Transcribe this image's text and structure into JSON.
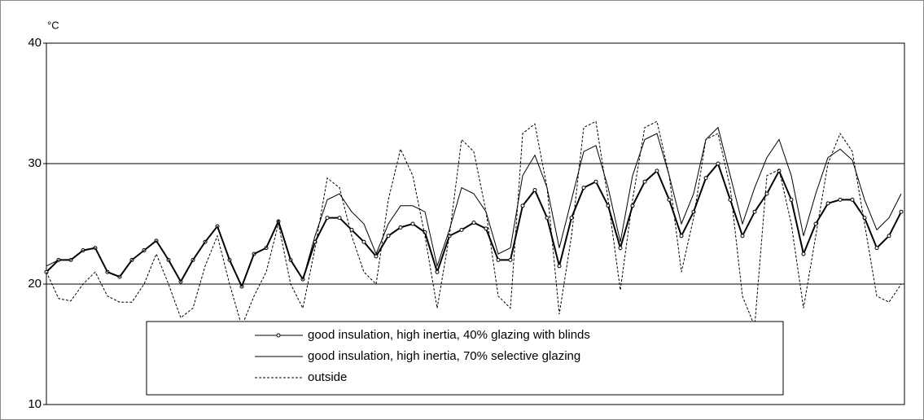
{
  "chart_data": {
    "type": "line",
    "y_label": "°C",
    "ylim": [
      10,
      40
    ],
    "yticks": [
      10,
      20,
      30,
      40
    ],
    "grid": true,
    "legend": "bottom",
    "series": [
      {
        "name": "good insulation, high inertia, 40% glazing with blinds",
        "color": "#000000",
        "style": "markers",
        "values": [
          21,
          22,
          22,
          22.8,
          23,
          21,
          20.6,
          22,
          22.8,
          23.6,
          22,
          20.2,
          22,
          23.5,
          24.8,
          22,
          19.8,
          22.5,
          23,
          25.2,
          22,
          20.4,
          23.5,
          25.5,
          25.5,
          24.5,
          23.5,
          22.3,
          24,
          24.7,
          25,
          24.3,
          21,
          24,
          24.5,
          25.1,
          24.6,
          22,
          22,
          26.5,
          27.8,
          25.5,
          21.5,
          25.5,
          28,
          28.5,
          26.5,
          23,
          26.5,
          28.5,
          29.4,
          27,
          24,
          26,
          28.8,
          30,
          27,
          24,
          26,
          27.5,
          29.4,
          27,
          22.5,
          25,
          26.7,
          27,
          27,
          25.5,
          23,
          24,
          26
        ]
      },
      {
        "name": "good insulation, high inertia, 70% selective glazing",
        "color": "#000000",
        "style": "solid",
        "values": [
          21.5,
          22,
          22,
          22.8,
          23,
          21,
          20.6,
          22,
          22.8,
          23.6,
          22,
          20.2,
          22,
          23.5,
          24.8,
          22,
          19.8,
          22.5,
          23,
          25.3,
          22,
          20.4,
          24,
          27,
          27.5,
          26,
          25,
          22.5,
          25,
          26.5,
          26.5,
          26,
          21.5,
          24.5,
          28,
          27.5,
          26,
          22.5,
          23,
          29,
          30.7,
          28,
          23,
          27,
          31,
          31.5,
          28,
          23.5,
          29,
          32,
          32.5,
          29,
          25,
          27.5,
          32,
          33,
          29,
          25,
          28,
          30.5,
          32,
          29,
          24,
          27.5,
          30.5,
          31.2,
          30.3,
          27,
          24.5,
          25.5,
          27.5
        ]
      },
      {
        "name": "outside",
        "color": "#000000",
        "style": "dashed",
        "values": [
          21,
          18.8,
          18.6,
          20,
          21,
          19,
          18.5,
          18.5,
          20,
          22.5,
          20,
          17.2,
          18,
          21.5,
          24,
          20,
          16.5,
          19,
          21,
          25,
          20,
          18,
          23,
          28.8,
          28,
          24,
          21,
          20,
          27,
          31.2,
          29,
          24,
          18,
          24,
          32,
          31,
          26,
          19,
          18,
          32.5,
          33.3,
          28,
          17.5,
          24,
          33,
          33.5,
          27,
          19.5,
          27,
          33,
          33.5,
          29,
          21,
          25.5,
          32,
          32.5,
          28,
          19,
          16.5,
          29,
          29.5,
          25,
          18,
          24,
          30,
          32.5,
          31,
          25,
          19,
          18.5,
          20
        ]
      }
    ]
  }
}
